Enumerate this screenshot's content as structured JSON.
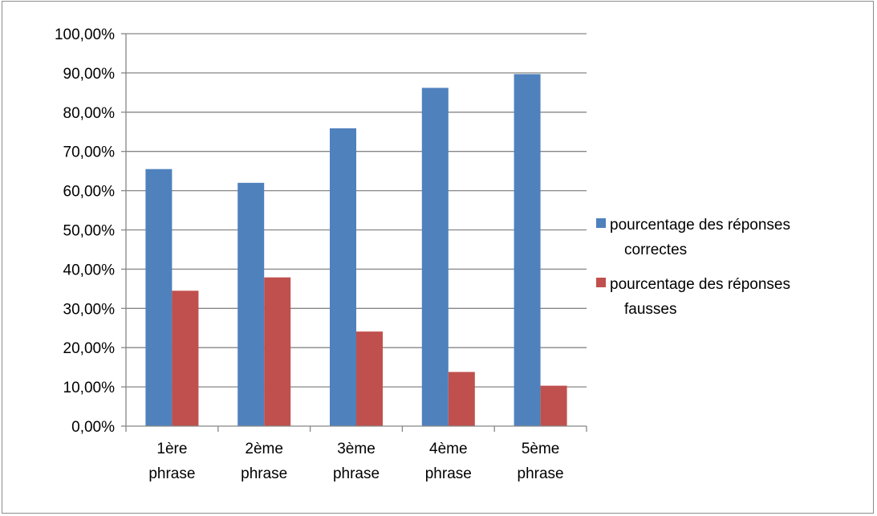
{
  "chart_data": {
    "type": "bar",
    "title": "",
    "xlabel": "",
    "ylabel": "",
    "categories": [
      [
        "1ère",
        "phrase"
      ],
      [
        "2ème",
        "phrase"
      ],
      [
        "3ème",
        "phrase"
      ],
      [
        "4ème",
        "phrase"
      ],
      [
        "5ème",
        "phrase"
      ]
    ],
    "series": [
      {
        "name": [
          "pourcentage des réponses",
          "correctes"
        ],
        "color": "#4F81BD",
        "values": [
          65.5,
          62.0,
          75.9,
          86.2,
          89.7
        ]
      },
      {
        "name": [
          "pourcentage des réponses",
          "fausses"
        ],
        "color": "#C0504D",
        "values": [
          34.5,
          37.9,
          24.1,
          13.8,
          10.3
        ]
      }
    ],
    "ylim": [
      0,
      100
    ],
    "y_ticks": [
      0,
      10,
      20,
      30,
      40,
      50,
      60,
      70,
      80,
      90,
      100
    ],
    "y_tick_labels": [
      "0,00%",
      "10,00%",
      "20,00%",
      "30,00%",
      "40,00%",
      "50,00%",
      "60,00%",
      "70,00%",
      "80,00%",
      "90,00%",
      "100,00%"
    ],
    "grid": true,
    "legend_position": "right"
  }
}
